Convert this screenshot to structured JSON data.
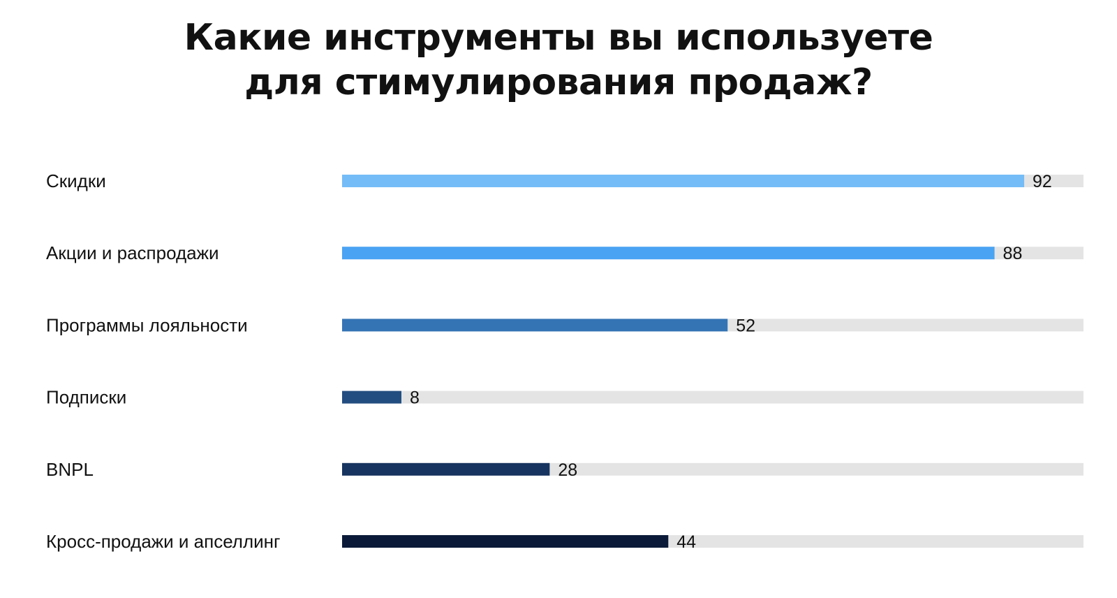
{
  "chart_data": {
    "type": "bar",
    "orientation": "horizontal",
    "title_lines": [
      "Какие инструменты вы используете",
      "для стимулирования продаж?"
    ],
    "categories": [
      "Скидки",
      "Акции и распродажи",
      "Программы лояльности",
      "Подписки",
      "BNPL",
      "Кросс-продажи и апселлинг"
    ],
    "values": [
      92,
      88,
      52,
      8,
      28,
      44
    ],
    "bar_colors": [
      "#74bcf7",
      "#4aa3f3",
      "#3474b5",
      "#224d80",
      "#17335f",
      "#0b1a38"
    ],
    "track_color": "#e4e4e4",
    "xlim": [
      0,
      100
    ],
    "grid": false,
    "legend": "none"
  }
}
